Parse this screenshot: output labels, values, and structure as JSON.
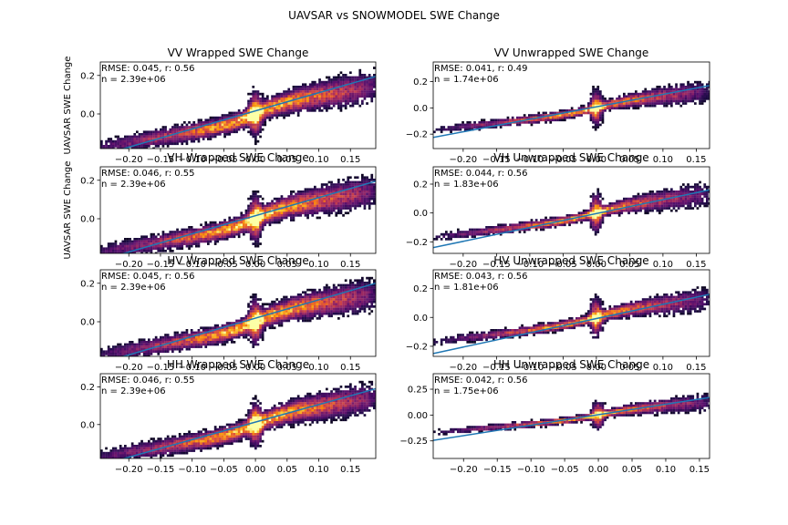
{
  "suptitle": "UAVSAR vs SNOWMODEL SWE Change",
  "colors": {
    "fit_line": "#1f77b4",
    "density_cmap": "inferno"
  },
  "chart_data": [
    {
      "type": "heatmap",
      "title": "VV Wrapped SWE Change",
      "ylabel": "UAVSAR SWE Change",
      "xlabel": "",
      "stats": "RMSE: 0.045, r: 0.56",
      "n": "n = 2.39e+06",
      "xlim": [
        -0.245,
        0.19
      ],
      "ylim": [
        -0.18,
        0.27
      ],
      "xticks": [
        -0.2,
        -0.15,
        -0.1,
        -0.05,
        0.0,
        0.05,
        0.1,
        0.15
      ],
      "xtick_labels": [
        "−0.20",
        "−0.15",
        "−0.10",
        "−0.05",
        "0.00",
        "0.05",
        "0.10",
        "0.15"
      ],
      "yticks": [
        0.0,
        0.2
      ],
      "ytick_labels": [
        "0.0",
        "0.2"
      ],
      "fit_line": {
        "x": [
          -0.245,
          0.19
        ],
        "y": [
          -0.215,
          0.195
        ]
      },
      "density_shape": "wrapped"
    },
    {
      "type": "heatmap",
      "title": "VV Unwrapped SWE Change",
      "ylabel": "",
      "xlabel": "",
      "stats": "RMSE: 0.041, r: 0.49",
      "n": "n = 1.74e+06",
      "xlim": [
        -0.245,
        0.17
      ],
      "ylim": [
        -0.31,
        0.35
      ],
      "xticks": [
        -0.2,
        -0.15,
        -0.1,
        -0.05,
        0.0,
        0.05,
        0.1,
        0.15
      ],
      "xtick_labels": [
        "−0.20",
        "−0.15",
        "−0.10",
        "−0.05",
        "0.00",
        "0.05",
        "0.10",
        "0.15"
      ],
      "yticks": [
        -0.2,
        0.0,
        0.2
      ],
      "ytick_labels": [
        "−0.2",
        "0.0",
        "0.2"
      ],
      "fit_line": {
        "x": [
          -0.245,
          0.17
        ],
        "y": [
          -0.225,
          0.17
        ]
      },
      "density_shape": "unwrapped"
    },
    {
      "type": "heatmap",
      "title": "VH Wrapped SWE Change",
      "ylabel": "UAVSAR SWE Change",
      "xlabel": "",
      "stats": "RMSE: 0.046, r: 0.55",
      "n": "n = 2.39e+06",
      "xlim": [
        -0.245,
        0.19
      ],
      "ylim": [
        -0.18,
        0.27
      ],
      "xticks": [
        -0.2,
        -0.15,
        -0.1,
        -0.05,
        0.0,
        0.05,
        0.1,
        0.15
      ],
      "xtick_labels": [
        "−0.20",
        "−0.15",
        "−0.10",
        "−0.05",
        "0.00",
        "0.05",
        "0.10",
        "0.15"
      ],
      "yticks": [
        0.0,
        0.2
      ],
      "ytick_labels": [
        "0.0",
        "0.2"
      ],
      "fit_line": {
        "x": [
          -0.245,
          0.19
        ],
        "y": [
          -0.215,
          0.195
        ]
      },
      "density_shape": "wrapped"
    },
    {
      "type": "heatmap",
      "title": "VH Unwrapped SWE Change",
      "ylabel": "",
      "xlabel": "",
      "stats": "RMSE: 0.044, r: 0.56",
      "n": "n = 1.83e+06",
      "xlim": [
        -0.245,
        0.17
      ],
      "ylim": [
        -0.28,
        0.32
      ],
      "xticks": [
        -0.2,
        -0.15,
        -0.1,
        -0.05,
        0.0,
        0.05,
        0.1,
        0.15
      ],
      "xtick_labels": [
        "−0.20",
        "−0.15",
        "−0.10",
        "−0.05",
        "0.00",
        "0.05",
        "0.10",
        "0.15"
      ],
      "yticks": [
        -0.2,
        0.0,
        0.2
      ],
      "ytick_labels": [
        "−0.2",
        "0.0",
        "0.2"
      ],
      "fit_line": {
        "x": [
          -0.245,
          0.17
        ],
        "y": [
          -0.24,
          0.16
        ]
      },
      "density_shape": "unwrapped"
    },
    {
      "type": "heatmap",
      "title": "HV Wrapped SWE Change",
      "ylabel": "",
      "xlabel": "",
      "stats": "RMSE: 0.045, r: 0.56",
      "n": "n = 2.39e+06",
      "xlim": [
        -0.245,
        0.19
      ],
      "ylim": [
        -0.18,
        0.27
      ],
      "xticks": [
        -0.2,
        -0.15,
        -0.1,
        -0.05,
        0.0,
        0.05,
        0.1,
        0.15
      ],
      "xtick_labels": [
        "−0.20",
        "−0.15",
        "−0.10",
        "−0.05",
        "0.00",
        "0.05",
        "0.10",
        "0.15"
      ],
      "yticks": [
        0.0,
        0.2
      ],
      "ytick_labels": [
        "0.0",
        "0.2"
      ],
      "fit_line": {
        "x": [
          -0.245,
          0.19
        ],
        "y": [
          -0.215,
          0.2
        ]
      },
      "density_shape": "wrapped"
    },
    {
      "type": "heatmap",
      "title": "HV Unwrapped SWE Change",
      "ylabel": "",
      "xlabel": "",
      "stats": "RMSE: 0.043, r: 0.56",
      "n": "n = 1.81e+06",
      "xlim": [
        -0.245,
        0.17
      ],
      "ylim": [
        -0.27,
        0.33
      ],
      "xticks": [
        -0.2,
        -0.15,
        -0.1,
        -0.05,
        0.0,
        0.05,
        0.1,
        0.15
      ],
      "xtick_labels": [
        "−0.20",
        "−0.15",
        "−0.10",
        "−0.05",
        "0.00",
        "0.05",
        "0.10",
        "0.15"
      ],
      "yticks": [
        -0.2,
        0.0,
        0.2
      ],
      "ytick_labels": [
        "−0.2",
        "0.0",
        "0.2"
      ],
      "fit_line": {
        "x": [
          -0.245,
          0.17
        ],
        "y": [
          -0.25,
          0.16
        ]
      },
      "density_shape": "unwrapped"
    },
    {
      "type": "heatmap",
      "title": "HH Wrapped SWE Change",
      "ylabel": "",
      "xlabel": "",
      "stats": "RMSE: 0.046, r: 0.55",
      "n": "n = 2.39e+06",
      "xlim": [
        -0.245,
        0.19
      ],
      "ylim": [
        -0.18,
        0.27
      ],
      "xticks": [
        -0.2,
        -0.15,
        -0.1,
        -0.05,
        0.0,
        0.05,
        0.1,
        0.15
      ],
      "xtick_labels": [
        "−0.20",
        "−0.15",
        "−0.10",
        "−0.05",
        "0.00",
        "0.05",
        "0.10",
        "0.15"
      ],
      "yticks": [
        0.0,
        0.2
      ],
      "ytick_labels": [
        "0.0",
        "0.2"
      ],
      "fit_line": {
        "x": [
          -0.245,
          0.19
        ],
        "y": [
          -0.215,
          0.19
        ]
      },
      "density_shape": "wrapped"
    },
    {
      "type": "heatmap",
      "title": "HH Unwrapped SWE Change",
      "ylabel": "",
      "xlabel": "",
      "stats": "RMSE: 0.042, r: 0.56",
      "n": "n = 1.75e+06",
      "xlim": [
        -0.245,
        0.165
      ],
      "ylim": [
        -0.42,
        0.4
      ],
      "xticks": [
        -0.2,
        -0.15,
        -0.1,
        -0.05,
        0.0,
        0.05,
        0.1,
        0.15
      ],
      "xtick_labels": [
        "−0.20",
        "−0.15",
        "−0.10",
        "−0.05",
        "0.00",
        "0.05",
        "0.10",
        "0.15"
      ],
      "yticks": [
        -0.25,
        0.0,
        0.25
      ],
      "ytick_labels": [
        "−0.25",
        "0.00",
        "0.25"
      ],
      "fit_line": {
        "x": [
          -0.245,
          0.165
        ],
        "y": [
          -0.245,
          0.17
        ]
      },
      "density_shape": "unwrapped"
    }
  ]
}
